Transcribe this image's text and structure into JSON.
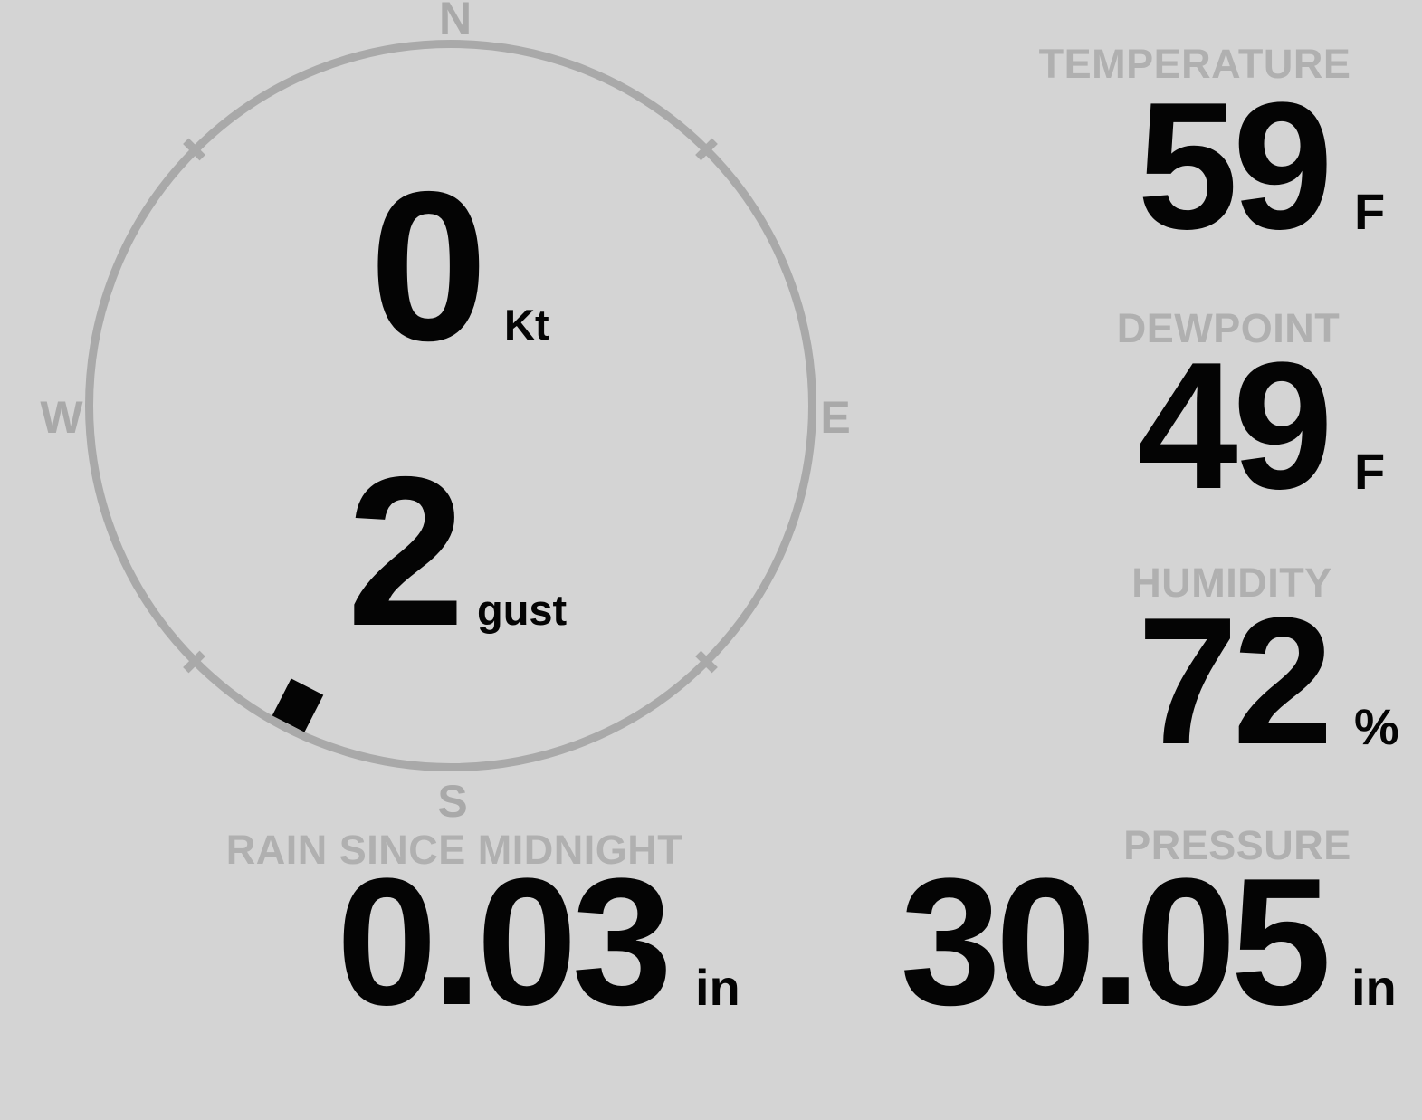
{
  "station": {
    "compass": {
      "north": "N",
      "east": "E",
      "south": "S",
      "west": "W",
      "wind_speed_value": "0",
      "wind_speed_unit": "Kt",
      "wind_gust_value": "2",
      "wind_gust_unit": "gust",
      "wind_direction_deg": 207
    },
    "temperature": {
      "label": "TEMPERATURE",
      "value": "59",
      "unit": "F"
    },
    "dewpoint": {
      "label": "DEWPOINT",
      "value": "49",
      "unit": "F"
    },
    "humidity": {
      "label": "HUMIDITY",
      "value": "72",
      "unit": "%"
    },
    "rain": {
      "label": "RAIN SINCE MIDNIGHT",
      "value": "0.03",
      "unit": "in"
    },
    "pressure": {
      "label": "PRESSURE",
      "value": "30.05",
      "unit": "in"
    }
  },
  "colors": {
    "background": "#d4d4d4",
    "muted_gray": "#b0b0b0",
    "ring_gray": "#a9a9a9",
    "value_black": "#040404"
  }
}
